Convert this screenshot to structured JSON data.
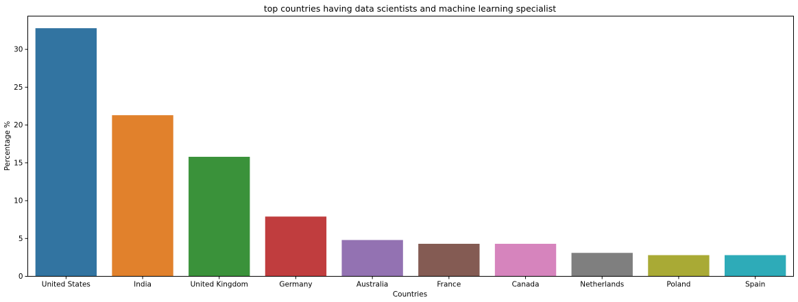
{
  "chart_data": {
    "type": "bar",
    "title": "top countries having data scientists and machine learning specialist",
    "xlabel": "Countries",
    "ylabel": "Percentage %",
    "categories": [
      "United States",
      "India",
      "United Kingdom",
      "Germany",
      "Australia",
      "France",
      "Canada",
      "Netherlands",
      "Poland",
      "Spain"
    ],
    "values": [
      32.8,
      21.3,
      15.8,
      7.9,
      4.8,
      4.3,
      4.3,
      3.1,
      2.8,
      2.8
    ],
    "colors": [
      "#3274a1",
      "#e1812c",
      "#3a923a",
      "#c03d3e",
      "#9372b2",
      "#845b53",
      "#d684bd",
      "#7f7f7f",
      "#a9aa35",
      "#2eabb8"
    ],
    "yticks": [
      0,
      5,
      10,
      15,
      20,
      25,
      30
    ],
    "ylim": [
      0,
      34.4
    ],
    "grid": false,
    "legend": "none"
  }
}
